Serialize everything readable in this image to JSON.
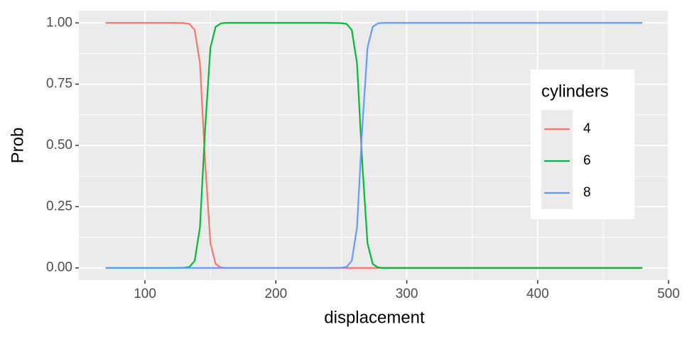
{
  "chart_data": {
    "type": "line",
    "x_label": "displacement",
    "y_label": "Prob",
    "x": [
      70,
      80,
      90,
      100,
      110,
      120,
      130,
      134,
      138,
      142,
      146,
      150,
      154,
      158,
      162,
      170,
      180,
      190,
      200,
      210,
      220,
      230,
      240,
      250,
      254,
      258,
      262,
      266,
      270,
      274,
      278,
      282,
      290,
      300,
      310,
      320,
      330,
      340,
      350,
      360,
      370,
      380,
      390,
      400,
      410,
      420,
      430,
      440,
      450,
      460,
      470,
      480
    ],
    "series": [
      {
        "name": "4",
        "color": "#F8766D",
        "values": [
          1,
          1,
          1,
          1,
          1,
          1,
          0.999,
          0.996,
          0.971,
          0.835,
          0.429,
          0.101,
          0.016,
          0.002,
          0,
          0,
          0,
          0,
          0,
          0,
          0,
          0,
          0,
          0,
          0,
          0,
          0,
          0,
          0,
          0,
          0,
          0,
          0,
          0,
          0,
          0,
          0,
          0,
          0,
          0,
          0,
          0,
          0,
          0,
          0,
          0,
          0,
          0,
          0,
          0,
          0,
          0
        ]
      },
      {
        "name": "6",
        "color": "#00BA38",
        "values": [
          0,
          0,
          0,
          0,
          0,
          0,
          0.001,
          0.004,
          0.029,
          0.165,
          0.571,
          0.899,
          0.984,
          0.998,
          1,
          1,
          1,
          1,
          1,
          1,
          1,
          1,
          1,
          0.999,
          0.996,
          0.971,
          0.835,
          0.429,
          0.101,
          0.016,
          0.002,
          0,
          0,
          0,
          0,
          0,
          0,
          0,
          0,
          0,
          0,
          0,
          0,
          0,
          0,
          0,
          0,
          0,
          0,
          0,
          0,
          0
        ]
      },
      {
        "name": "8",
        "color": "#619CFF",
        "values": [
          0,
          0,
          0,
          0,
          0,
          0,
          0,
          0,
          0,
          0,
          0,
          0,
          0,
          0,
          0,
          0,
          0,
          0,
          0,
          0,
          0,
          0,
          0,
          0.001,
          0.004,
          0.029,
          0.165,
          0.571,
          0.899,
          0.984,
          0.998,
          1,
          1,
          1,
          1,
          1,
          1,
          1,
          1,
          1,
          1,
          1,
          1,
          1,
          1,
          1,
          1,
          1,
          1,
          1,
          1,
          1
        ]
      }
    ],
    "legend_title": "cylinders",
    "legend_position": "right-inside",
    "xlim": [
      49.5,
      500.5
    ],
    "xticks": [
      100,
      200,
      300,
      400,
      500
    ],
    "ylim": [
      -0.05,
      1.05
    ],
    "yticks": [
      {
        "value": 0,
        "label": "0.00"
      },
      0.25,
      {
        "value": 0.5,
        "label": "0.50"
      },
      0.75,
      {
        "value": 1,
        "label": "1.00"
      }
    ],
    "grid": true
  }
}
